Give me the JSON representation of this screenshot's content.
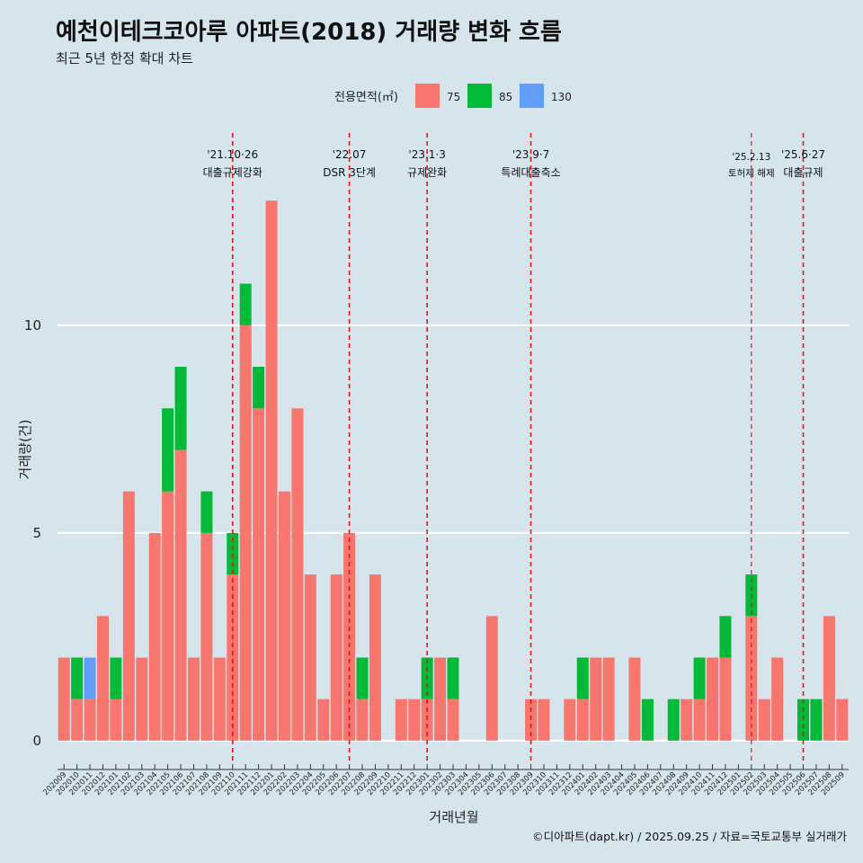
{
  "chart_data": {
    "type": "bar",
    "title": "예천이테크코아루 아파트(2018) 거래량 변화 흐름",
    "subtitle": "최근 5년 한정 확대 차트",
    "xlabel": "거래년월",
    "ylabel": "거래량(건)",
    "caption": "©디아파트(dapt.kr) / 2025.09.25 / 자료=국토교통부 실거래가",
    "ylim": [
      -0.5,
      14.8
    ],
    "yticks": [
      0,
      5,
      10
    ],
    "grid": "horizontal",
    "legend": {
      "title": "전용면적(㎡)",
      "position": "top"
    },
    "categories": [
      "202009",
      "202010",
      "202011",
      "202012",
      "202101",
      "202102",
      "202103",
      "202104",
      "202105",
      "202106",
      "202107",
      "202108",
      "202109",
      "202110",
      "202111",
      "202112",
      "202201",
      "202202",
      "202203",
      "202204",
      "202205",
      "202206",
      "202207",
      "202208",
      "202209",
      "202210",
      "202211",
      "202212",
      "202301",
      "202302",
      "202303",
      "202304",
      "202305",
      "202306",
      "202307",
      "202308",
      "202309",
      "202310",
      "202311",
      "202312",
      "202401",
      "202402",
      "202403",
      "202404",
      "202405",
      "202406",
      "202407",
      "202408",
      "202409",
      "202410",
      "202411",
      "202412",
      "202501",
      "202502",
      "202503",
      "202504",
      "202505",
      "202506",
      "202507",
      "202508",
      "202509"
    ],
    "series": [
      {
        "name": "75",
        "color": "#f8766d",
        "values": [
          2,
          1,
          1,
          3,
          1,
          6,
          2,
          5,
          6,
          7,
          2,
          5,
          2,
          4,
          10,
          8,
          13,
          6,
          8,
          4,
          1,
          4,
          5,
          1,
          4,
          0,
          1,
          1,
          1,
          2,
          1,
          0,
          0,
          3,
          0,
          0,
          1,
          1,
          0,
          1,
          1,
          2,
          2,
          0,
          2,
          0,
          0,
          0,
          1,
          1,
          2,
          2,
          0,
          3,
          1,
          2,
          0,
          0,
          0,
          3,
          1
        ]
      },
      {
        "name": "85",
        "color": "#00ba38",
        "values": [
          0,
          1,
          0,
          0,
          1,
          0,
          0,
          0,
          2,
          2,
          0,
          1,
          0,
          1,
          1,
          1,
          0,
          0,
          0,
          0,
          0,
          0,
          0,
          1,
          0,
          0,
          0,
          0,
          1,
          0,
          1,
          0,
          0,
          0,
          0,
          0,
          0,
          0,
          0,
          0,
          1,
          0,
          0,
          0,
          0,
          1,
          0,
          1,
          0,
          1,
          0,
          1,
          0,
          1,
          0,
          0,
          0,
          1,
          1,
          0,
          0
        ]
      },
      {
        "name": "130",
        "color": "#619cff",
        "values": [
          0,
          0,
          1,
          0,
          0,
          0,
          0,
          0,
          0,
          0,
          0,
          0,
          0,
          0,
          0,
          0,
          0,
          0,
          0,
          0,
          0,
          0,
          0,
          0,
          0,
          0,
          0,
          0,
          0,
          0,
          0,
          0,
          0,
          0,
          0,
          0,
          0,
          0,
          0,
          0,
          0,
          0,
          0,
          0,
          0,
          0,
          0,
          0,
          0,
          0,
          0,
          0,
          0,
          0,
          0,
          0,
          0,
          0,
          0,
          0,
          0
        ]
      }
    ],
    "annotations": [
      {
        "category": "202110",
        "date": "'21.10·26",
        "label": "대출규제강화",
        "small": false
      },
      {
        "category": "202207",
        "date": "'22.07",
        "label": "DSR 3단계",
        "small": false
      },
      {
        "category": "202301",
        "date": "'23.1·3",
        "label": "규제완화",
        "small": false
      },
      {
        "category": "202309",
        "date": "'23.9·7",
        "label": "특례대출축소",
        "small": false
      },
      {
        "category": "202502",
        "date": "'25.2.13",
        "label": "토허제 해제",
        "small": true
      },
      {
        "category": "202506",
        "date": "'25.6·27",
        "label": "대출규제",
        "small": false
      }
    ],
    "line_color": "#e8141c"
  }
}
